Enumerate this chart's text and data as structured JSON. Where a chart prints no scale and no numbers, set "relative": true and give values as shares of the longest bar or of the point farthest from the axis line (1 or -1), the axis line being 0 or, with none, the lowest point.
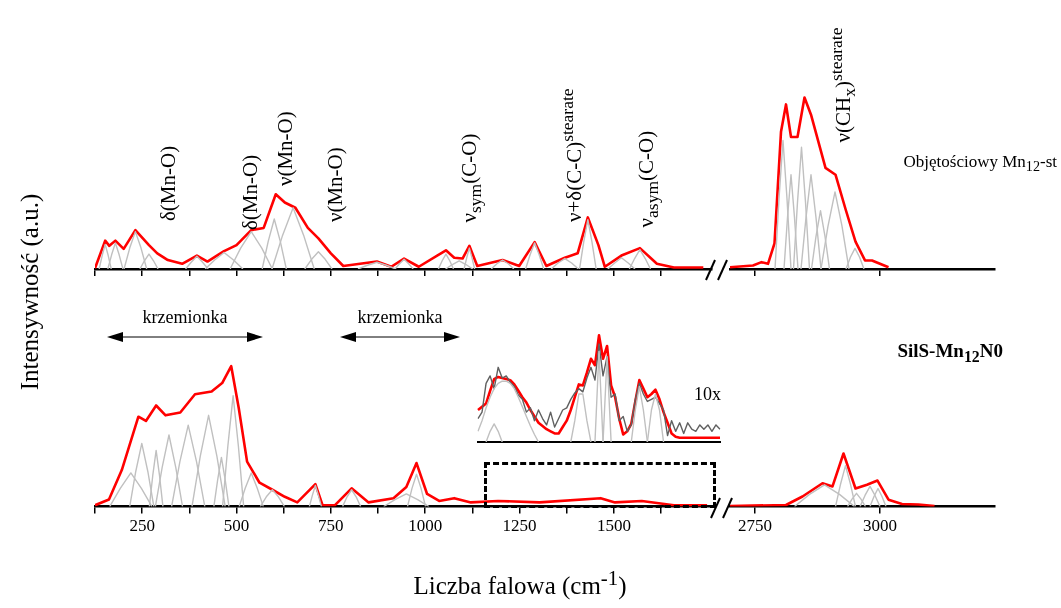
{
  "chart_data": [
    {
      "type": "line",
      "relative": true,
      "xlim": [
        125,
        1760
      ],
      "xticks": [
        {
          "value": 125,
          "label": null
        },
        {
          "value": 250,
          "label": null
        },
        {
          "value": 375,
          "label": null
        },
        {
          "value": 500,
          "label": null
        },
        {
          "value": 625,
          "label": null
        },
        {
          "value": 750,
          "label": null
        },
        {
          "value": 875,
          "label": null
        },
        {
          "value": 1000,
          "label": null
        },
        {
          "value": 1125,
          "label": null
        },
        {
          "value": 1250,
          "label": null
        },
        {
          "value": 1375,
          "label": null
        },
        {
          "value": 1500,
          "label": null
        },
        {
          "value": 1625,
          "label": null
        }
      ],
      "tick_labels": false,
      "annotations": [
        "δ(Mn-O)",
        "δ(Mn-O)",
        "ν(Mn-O)",
        "ν(Mn-O)",
        "ν$_{sym}$(C-O)",
        "ν+δ(C-C)$^{stearate}$",
        "ν$_{asym}$(C-O)"
      ],
      "series": [
        {
          "color": "#ff0000",
          "x": [
            125,
            152,
            163,
            179,
            201,
            232,
            268,
            290,
            318,
            356,
            395,
            423,
            467,
            500,
            539,
            572,
            604,
            628,
            656,
            689,
            717,
            750,
            783,
            872,
            910,
            944,
            983,
            1055,
            1077,
            1099,
            1117,
            1138,
            1205,
            1249,
            1290,
            1321,
            1370,
            1404,
            1431,
            1459,
            1476,
            1520,
            1569,
            1614,
            1659,
            1737
          ],
          "values": [
            0.01,
            0.38,
            0.31,
            0.38,
            0.27,
            0.52,
            0.32,
            0.21,
            0.12,
            0.07,
            0.18,
            0.1,
            0.24,
            0.32,
            0.52,
            0.55,
            1.0,
            0.89,
            0.82,
            0.55,
            0.41,
            0.21,
            0.04,
            0.1,
            0.03,
            0.14,
            0.03,
            0.25,
            0.15,
            0.14,
            0.31,
            0.04,
            0.12,
            0.04,
            0.36,
            0.04,
            0.15,
            0.21,
            0.69,
            0.32,
            0.03,
            0.18,
            0.28,
            0.07,
            0.02,
            0.02
          ]
        },
        {
          "color": "#c0c0c0",
          "x": [
            136,
            144,
            152,
            160,
            168
          ],
          "values": [
            0,
            0.18,
            0.33,
            0.18,
            0
          ]
        },
        {
          "color": "#c0c0c0",
          "x": [
            159,
            169,
            179,
            189,
            199
          ],
          "values": [
            0,
            0.19,
            0.35,
            0.19,
            0
          ]
        },
        {
          "color": "#c0c0c0",
          "x": [
            202,
            217,
            232,
            247,
            262
          ],
          "values": [
            0,
            0.28,
            0.5,
            0.28,
            0
          ]
        },
        {
          "color": "#c0c0c0",
          "x": [
            244,
            256,
            268,
            280,
            292
          ],
          "values": [
            0,
            0.11,
            0.2,
            0.11,
            0
          ]
        },
        {
          "color": "#c0c0c0",
          "x": [
            365,
            380,
            395,
            410,
            425
          ],
          "values": [
            0,
            0.09,
            0.17,
            0.09,
            0
          ]
        },
        {
          "color": "#c0c0c0",
          "x": [
            417,
            442,
            467,
            492,
            517
          ],
          "values": [
            0,
            0.12,
            0.22,
            0.12,
            0
          ]
        },
        {
          "color": "#c0c0c0",
          "x": [
            483,
            511,
            539,
            567,
            595
          ],
          "values": [
            0,
            0.28,
            0.5,
            0.28,
            0
          ]
        },
        {
          "color": "#c0c0c0",
          "x": [
            568,
            584,
            600,
            616,
            632
          ],
          "values": [
            0,
            0.37,
            0.67,
            0.37,
            0
          ]
        },
        {
          "color": "#c0c0c0",
          "x": [
            594,
            622,
            650,
            678,
            706
          ],
          "values": [
            0,
            0.45,
            0.82,
            0.45,
            0
          ]
        },
        {
          "color": "#c0c0c0",
          "x": [
            681,
            699,
            717,
            735,
            753
          ],
          "values": [
            0,
            0.13,
            0.23,
            0.13,
            0
          ]
        },
        {
          "color": "#c0c0c0",
          "x": [
            822,
            847,
            872,
            897,
            922
          ],
          "values": [
            0,
            0.05,
            0.09,
            0.05,
            0
          ]
        },
        {
          "color": "#c0c0c0",
          "x": [
            920,
            932,
            944,
            956,
            968
          ],
          "values": [
            0,
            0.07,
            0.13,
            0.07,
            0
          ]
        },
        {
          "color": "#c0c0c0",
          "x": [
            1035,
            1045,
            1055,
            1065,
            1075
          ],
          "values": [
            0,
            0.11,
            0.2,
            0.11,
            0
          ]
        },
        {
          "color": "#c0c0c0",
          "x": [
            1054,
            1072,
            1090,
            1108,
            1126
          ],
          "values": [
            0,
            0.06,
            0.11,
            0.06,
            0
          ]
        },
        {
          "color": "#c0c0c0",
          "x": [
            1175,
            1190,
            1205,
            1220,
            1235
          ],
          "values": [
            0,
            0.07,
            0.12,
            0.07,
            0
          ]
        },
        {
          "color": "#c0c0c0",
          "x": [
            1334,
            1352,
            1370,
            1388,
            1406
          ],
          "values": [
            0,
            0.08,
            0.14,
            0.08,
            0
          ]
        },
        {
          "color": "#c0c0c0",
          "x": [
            1484,
            1502,
            1520,
            1538,
            1556
          ],
          "values": [
            0,
            0.08,
            0.15,
            0.08,
            0
          ]
        },
        {
          "color": "#c0c0c0",
          "x": [
            1103,
            1110,
            1117,
            1124,
            1131
          ],
          "values": [
            0,
            0.15,
            0.28,
            0.15,
            0
          ]
        },
        {
          "color": "#c0c0c0",
          "x": [
            1266,
            1278,
            1290,
            1302,
            1314
          ],
          "values": [
            0,
            0.19,
            0.35,
            0.19,
            0
          ]
        },
        {
          "color": "#c0c0c0",
          "x": [
            1409,
            1420,
            1431,
            1442,
            1453
          ],
          "values": [
            0,
            0.36,
            0.66,
            0.36,
            0
          ]
        },
        {
          "color": "#c0c0c0",
          "x": [
            1541,
            1555,
            1569,
            1583,
            1597
          ],
          "values": [
            0,
            0.14,
            0.26,
            0.14,
            0
          ]
        }
      ]
    },
    {
      "type": "line",
      "relative": true,
      "xlim": [
        2700,
        3230
      ],
      "xticks": [
        {
          "value": 2750,
          "label": null
        },
        {
          "value": 3000,
          "label": null
        }
      ],
      "tick_labels": false,
      "annotations": [
        "ν(CH$_{x}$)$^{stearate}$",
        "Objętościowy Mn$_{12}$-st"
      ],
      "series": [
        {
          "color": "#ff0000",
          "x": [
            2700,
            2746,
            2763,
            2776,
            2789,
            2802,
            2812,
            2822,
            2835,
            2849,
            2862,
            2891,
            2911,
            2931,
            2951,
            2970,
            2984,
            3017
          ],
          "values": [
            0.01,
            0.02,
            0.04,
            0.03,
            0.15,
            0.8,
            0.96,
            0.77,
            0.77,
            1.0,
            0.9,
            0.59,
            0.55,
            0.35,
            0.16,
            0.05,
            0.05,
            0.01
          ]
        },
        {
          "color": "#c0c0c0",
          "x": [
            2790,
            2798,
            2806,
            2814,
            2822
          ],
          "values": [
            0,
            0.41,
            0.75,
            0.41,
            0
          ]
        },
        {
          "color": "#c0c0c0",
          "x": [
            2808,
            2815,
            2822,
            2829,
            2836
          ],
          "values": [
            0,
            0.3,
            0.55,
            0.3,
            0
          ]
        },
        {
          "color": "#c0c0c0",
          "x": [
            2827,
            2835,
            2843,
            2851,
            2859
          ],
          "values": [
            0,
            0.39,
            0.71,
            0.39,
            0
          ]
        },
        {
          "color": "#c0c0c0",
          "x": [
            2842,
            2852,
            2862,
            2872,
            2882
          ],
          "values": [
            0,
            0.3,
            0.55,
            0.3,
            0
          ]
        },
        {
          "color": "#c0c0c0",
          "x": [
            2863,
            2872,
            2881,
            2890,
            2899
          ],
          "values": [
            0,
            0.19,
            0.34,
            0.19,
            0
          ]
        },
        {
          "color": "#c0c0c0",
          "x": [
            2882,
            2896,
            2910,
            2924,
            2938
          ],
          "values": [
            0,
            0.25,
            0.45,
            0.25,
            0
          ]
        },
        {
          "color": "#c0c0c0",
          "x": [
            2932,
            2941,
            2950,
            2959,
            2968
          ],
          "values": [
            0,
            0.07,
            0.12,
            0.07,
            0
          ]
        }
      ]
    },
    {
      "type": "line",
      "relative": true,
      "xlabel": "Liczba falowa (cm$^{-1}$)",
      "ylabel": "Intensywność (a.u.)",
      "xlim": [
        125,
        1760
      ],
      "xticks": [
        {
          "value": 125,
          "label": null
        },
        250,
        {
          "value": 375,
          "label": null
        },
        500,
        {
          "value": 625,
          "label": null
        },
        750,
        {
          "value": 875,
          "label": null
        },
        1000,
        {
          "value": 1125,
          "label": null
        },
        1250,
        {
          "value": 1375,
          "label": null
        },
        1500,
        {
          "value": 1625,
          "label": null
        }
      ],
      "annotations": [
        "krzemionka",
        "krzemionka"
      ],
      "series": [
        {
          "color": "#ff0000",
          "x": [
            125,
            162,
            196,
            240,
            260,
            287,
            312,
            351,
            390,
            434,
            462,
            486,
            506,
            528,
            561,
            595,
            628,
            661,
            709,
            728,
            761,
            805,
            850,
            916,
            950,
            977,
            1005,
            1037,
            1077,
            1121,
            1193,
            1303,
            1465,
            1503,
            1574,
            1659,
            1747
          ],
          "values": [
            0.01,
            0.05,
            0.26,
            0.64,
            0.61,
            0.72,
            0.65,
            0.67,
            0.8,
            0.82,
            0.88,
            1.0,
            0.7,
            0.32,
            0.17,
            0.12,
            0.07,
            0.03,
            0.16,
            0.01,
            0.01,
            0.13,
            0.03,
            0.06,
            0.14,
            0.31,
            0.09,
            0.04,
            0.06,
            0.03,
            0.04,
            0.03,
            0.06,
            0.03,
            0.04,
            0.01,
            0.01
          ]
        },
        {
          "color": "#c0c0c0",
          "x": [
            164,
            192,
            220,
            248,
            276
          ],
          "values": [
            0,
            0.13,
            0.24,
            0.13,
            0
          ]
        },
        {
          "color": "#c0c0c0",
          "x": [
            217,
            233,
            249,
            265,
            281
          ],
          "values": [
            0,
            0.25,
            0.45,
            0.25,
            0
          ]
        },
        {
          "color": "#c0c0c0",
          "x": [
            269,
            278,
            287,
            296,
            305
          ],
          "values": [
            0,
            0.22,
            0.4,
            0.22,
            0
          ]
        },
        {
          "color": "#c0c0c0",
          "x": [
            285,
            303,
            321,
            339,
            357
          ],
          "values": [
            0,
            0.28,
            0.51,
            0.28,
            0
          ]
        },
        {
          "color": "#c0c0c0",
          "x": [
            328,
            350,
            372,
            394,
            416
          ],
          "values": [
            0,
            0.32,
            0.58,
            0.32,
            0
          ]
        },
        {
          "color": "#c0c0c0",
          "x": [
            382,
            404,
            426,
            448,
            470
          ],
          "values": [
            0,
            0.36,
            0.65,
            0.36,
            0
          ]
        },
        {
          "color": "#c0c0c0",
          "x": [
            440,
            450,
            460,
            470,
            480
          ],
          "values": [
            0,
            0.19,
            0.35,
            0.19,
            0
          ]
        },
        {
          "color": "#c0c0c0",
          "x": [
            463,
            477,
            491,
            505,
            519
          ],
          "values": [
            0,
            0.43,
            0.79,
            0.43,
            0
          ]
        },
        {
          "color": "#c0c0c0",
          "x": [
            507,
            523,
            539,
            555,
            571
          ],
          "values": [
            0,
            0.13,
            0.24,
            0.13,
            0
          ]
        },
        {
          "color": "#c0c0c0",
          "x": [
            563,
            579,
            595,
            611,
            627
          ],
          "values": [
            0,
            0.07,
            0.12,
            0.07,
            0
          ]
        },
        {
          "color": "#c0c0c0",
          "x": [
            693,
            701,
            709,
            717,
            725
          ],
          "values": [
            0,
            0.08,
            0.15,
            0.08,
            0
          ]
        },
        {
          "color": "#c0c0c0",
          "x": [
            781,
            793,
            805,
            817,
            829
          ],
          "values": [
            0,
            0.07,
            0.12,
            0.07,
            0
          ]
        },
        {
          "color": "#c0c0c0",
          "x": [
            890,
            920,
            950,
            980,
            1010
          ],
          "values": [
            0,
            0.05,
            0.09,
            0.05,
            0
          ]
        },
        {
          "color": "#c0c0c0",
          "x": [
            953,
            965,
            977,
            989,
            1001
          ],
          "values": [
            0,
            0.13,
            0.23,
            0.13,
            0
          ]
        }
      ]
    },
    {
      "type": "line",
      "relative": true,
      "xlim": [
        2700,
        3230
      ],
      "xticks": [
        2750,
        3000
      ],
      "annotations": [
        "SilS-Mn$_{12}$N0"
      ],
      "series": [
        {
          "color": "#ff0000",
          "x": [
            2700,
            2812,
            2845,
            2885,
            2905,
            2927,
            2951,
            2974,
            2995,
            3017,
            3044,
            3077,
            3109
          ],
          "values": [
            0.01,
            0.03,
            0.19,
            0.44,
            0.38,
            1.0,
            0.34,
            0.41,
            0.49,
            0.13,
            0.05,
            0.04,
            0.01
          ]
        },
        {
          "color": "#c0c0c0",
          "x": [
            2829,
            2859,
            2889,
            2919,
            2949
          ],
          "values": [
            0,
            0.23,
            0.41,
            0.23,
            0
          ]
        },
        {
          "color": "#c0c0c0",
          "x": [
            2911,
            2921,
            2931,
            2941,
            2951
          ],
          "values": [
            0,
            0.42,
            0.77,
            0.42,
            0
          ]
        },
        {
          "color": "#c0c0c0",
          "x": [
            2935,
            2944,
            2953,
            2962,
            2971
          ],
          "values": [
            0,
            0.14,
            0.25,
            0.14,
            0
          ]
        },
        {
          "color": "#c0c0c0",
          "x": [
            2960,
            2970,
            2980,
            2990,
            3000
          ],
          "values": [
            0,
            0.21,
            0.38,
            0.21,
            0
          ]
        },
        {
          "color": "#c0c0c0",
          "x": [
            2980,
            2988,
            2996,
            3004,
            3012
          ],
          "values": [
            0,
            0.19,
            0.34,
            0.19,
            0
          ]
        }
      ]
    },
    {
      "type": "line",
      "relative": true,
      "categories": [
        null,
        null,
        null,
        null,
        null,
        null,
        null,
        null,
        null,
        null,
        null,
        null,
        null,
        null,
        null,
        null,
        null,
        null,
        null,
        null,
        null,
        null,
        null,
        null,
        null,
        null,
        null,
        null,
        null,
        null,
        null,
        null,
        null,
        null,
        null,
        null,
        null,
        null,
        null,
        null,
        null,
        null,
        null,
        null,
        null,
        null,
        null,
        null,
        null,
        null,
        null,
        null,
        null,
        null,
        null,
        null,
        null,
        null,
        null,
        null,
        null
      ],
      "annotations": [
        "10x"
      ],
      "series": [
        {
          "color": "#ff0000",
          "values": [
            0.3,
            0.33,
            0.36,
            0.48,
            0.59,
            0.61,
            0.6,
            0.59,
            0.58,
            0.54,
            0.48,
            0.42,
            0.37,
            0.3,
            0.24,
            0.18,
            0.15,
            0.12,
            0.1,
            0.08,
            0.08,
            0.14,
            0.2,
            0.3,
            0.42,
            0.54,
            0.53,
            0.65,
            0.78,
            0.72,
            1.0,
            0.78,
            0.9,
            0.53,
            0.42,
            0.22,
            0.07,
            0.1,
            0.17,
            0.38,
            0.58,
            0.5,
            0.42,
            0.45,
            0.49,
            0.4,
            0.28,
            0.18,
            0.08,
            0.05,
            0.04,
            0.04,
            0.04,
            0.04,
            0.04,
            0.04,
            0.04,
            0.04,
            0.04,
            0.04,
            0.04
          ]
        },
        {
          "color": "#606060",
          "values": [
            0.22,
            0.28,
            0.55,
            0.62,
            0.5,
            0.7,
            0.6,
            0.62,
            0.56,
            0.52,
            0.44,
            0.4,
            0.28,
            0.32,
            0.2,
            0.3,
            0.22,
            0.16,
            0.28,
            0.14,
            0.22,
            0.3,
            0.32,
            0.4,
            0.46,
            0.5,
            0.47,
            0.6,
            0.7,
            0.58,
            0.92,
            0.62,
            0.8,
            0.42,
            0.45,
            0.2,
            0.24,
            0.1,
            0.16,
            0.4,
            0.55,
            0.45,
            0.38,
            0.4,
            0.42,
            0.36,
            0.3,
            0.06,
            0.2,
            0.1,
            0.18,
            0.08,
            0.18,
            0.12,
            0.1,
            0.16,
            0.12,
            0.16,
            0.1,
            0.16,
            0.12
          ]
        },
        {
          "color": "#c0c0c0",
          "values": [
            null,
            null,
            0,
            0.1,
            0.17,
            0.1,
            0,
            null,
            null,
            null,
            null,
            null,
            null,
            null,
            null,
            null,
            null,
            null,
            null,
            null,
            null,
            null,
            null,
            null,
            null,
            null,
            null,
            null,
            null,
            null,
            null,
            null,
            null,
            null,
            null,
            null,
            null,
            null,
            null,
            null,
            null,
            null,
            null,
            null,
            null,
            null,
            null,
            null,
            null,
            null,
            null,
            null,
            null,
            null,
            null,
            null,
            null,
            null,
            null,
            null,
            null
          ]
        },
        {
          "color": "#c0c0c0",
          "values": [
            0.1,
            0.2,
            0.32,
            0.42,
            0.5,
            0.55,
            0.57,
            0.57,
            0.55,
            0.5,
            0.42,
            0.33,
            0.24,
            0.15,
            0.07,
            0,
            null,
            null,
            null,
            null,
            null,
            null,
            null,
            null,
            null,
            null,
            null,
            null,
            null,
            null,
            null,
            null,
            null,
            null,
            null,
            null,
            null,
            null,
            null,
            null,
            null,
            null,
            null,
            null,
            null,
            null,
            null,
            null,
            null,
            null,
            null,
            null,
            null,
            null,
            null,
            null,
            null,
            null,
            null,
            null,
            null
          ]
        },
        {
          "color": "#c0c0c0",
          "values": [
            null,
            null,
            null,
            null,
            null,
            null,
            null,
            null,
            null,
            null,
            null,
            null,
            null,
            null,
            null,
            null,
            null,
            null,
            null,
            null,
            null,
            null,
            null,
            0,
            0.2,
            0.45,
            0.45,
            0.2,
            0,
            null,
            null,
            null,
            null,
            null,
            null,
            null,
            null,
            null,
            null,
            null,
            null,
            null,
            null,
            null,
            null,
            null,
            null,
            null,
            null,
            null,
            null,
            null,
            null,
            null,
            null,
            null,
            null,
            null,
            null,
            null,
            null
          ]
        },
        {
          "color": "#c0c0c0",
          "values": [
            null,
            null,
            null,
            null,
            null,
            null,
            null,
            null,
            null,
            null,
            null,
            null,
            null,
            null,
            null,
            null,
            null,
            null,
            null,
            null,
            null,
            null,
            null,
            null,
            null,
            null,
            null,
            null,
            null,
            0,
            0.85,
            0,
            null,
            null,
            null,
            null,
            null,
            null,
            null,
            null,
            null,
            null,
            null,
            null,
            null,
            null,
            null,
            null,
            null,
            null,
            null,
            null,
            null,
            null,
            null,
            null,
            null,
            null,
            null,
            null,
            null
          ]
        },
        {
          "color": "#c0c0c0",
          "values": [
            null,
            null,
            null,
            null,
            null,
            null,
            null,
            null,
            null,
            null,
            null,
            null,
            null,
            null,
            null,
            null,
            null,
            null,
            null,
            null,
            null,
            null,
            null,
            null,
            null,
            null,
            null,
            null,
            null,
            null,
            null,
            0,
            0.8,
            0,
            null,
            null,
            null,
            null,
            null,
            null,
            null,
            null,
            null,
            null,
            null,
            null,
            null,
            null,
            null,
            null,
            null,
            null,
            null,
            null,
            null,
            null,
            null,
            null,
            null,
            null,
            null
          ]
        },
        {
          "color": "#c0c0c0",
          "values": [
            null,
            null,
            null,
            null,
            null,
            null,
            null,
            null,
            null,
            null,
            null,
            null,
            null,
            null,
            null,
            null,
            null,
            null,
            null,
            null,
            null,
            null,
            null,
            null,
            null,
            null,
            null,
            null,
            null,
            null,
            null,
            null,
            null,
            null,
            null,
            null,
            null,
            null,
            0,
            0.3,
            0.52,
            0.3,
            0,
            null,
            null,
            null,
            null,
            null,
            null,
            null,
            null,
            null,
            null,
            null,
            null,
            null,
            null,
            null,
            null,
            null,
            null
          ]
        },
        {
          "color": "#c0c0c0",
          "values": [
            null,
            null,
            null,
            null,
            null,
            null,
            null,
            null,
            null,
            null,
            null,
            null,
            null,
            null,
            null,
            null,
            null,
            null,
            null,
            null,
            null,
            null,
            null,
            null,
            null,
            null,
            null,
            null,
            null,
            null,
            null,
            null,
            null,
            null,
            null,
            null,
            null,
            null,
            null,
            null,
            null,
            null,
            0,
            0.3,
            0.45,
            0.3,
            0,
            null,
            null,
            null,
            null,
            null,
            null,
            null,
            null,
            null,
            null,
            null,
            null,
            null,
            null
          ]
        }
      ]
    }
  ]
}
